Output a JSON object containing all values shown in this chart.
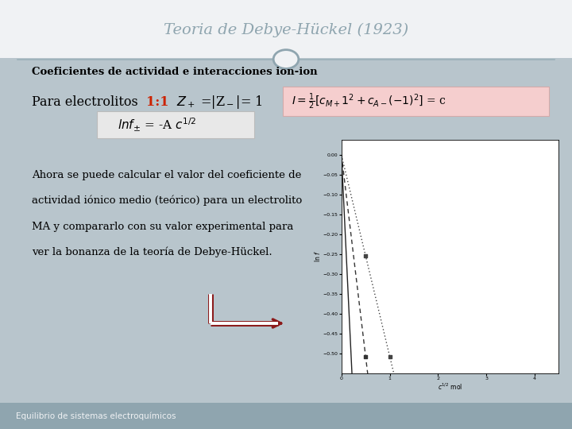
{
  "title": "Teoria de Debye-Hückel (1923)",
  "subtitle": "Coeficientes de actividad e interacciones ion-ion",
  "footer": "Equilibrio de sistemas electroquímicos",
  "bg_main": "#b8c5cc",
  "bg_top": "#f0f2f4",
  "bg_footer": "#8fa5af",
  "title_color": "#8fa5af",
  "text_color": "#000000",
  "ratio_color": "#cc2200",
  "equation_box_color": "#f5cece",
  "lnf_box_color": "#e8e8e8",
  "body_text_lines": [
    "Ahora se puede calcular el valor del coeficiente de",
    "actividad iónico medio (teórico) para un electrolito",
    "MA y compararlo con su valor experimental para",
    "ver la bonanza de la teoría de Debye-Hückel."
  ],
  "arrow_color": "#8b1a1a",
  "plot_bg": "#ffffff",
  "circle_color": "#8fa5af",
  "separator_color": "#9ab0b8"
}
